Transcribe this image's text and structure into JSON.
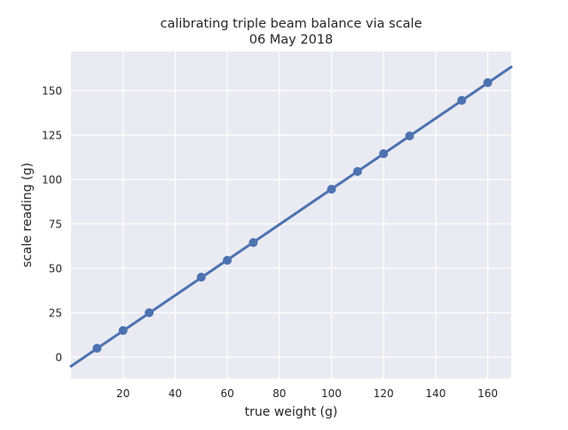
{
  "chart_data": {
    "type": "scatter",
    "title": "calibrating triple beam balance via scale",
    "subtitle": "06 May 2018",
    "xlabel": "true weight (g)",
    "ylabel": "scale reading (g)",
    "xlim": [
      0,
      169
    ],
    "ylim": [
      -12,
      172
    ],
    "xticks": [
      20,
      40,
      60,
      80,
      100,
      120,
      140,
      160
    ],
    "yticks": [
      0,
      25,
      50,
      75,
      100,
      125,
      150
    ],
    "grid": true,
    "points": {
      "x": [
        10,
        20,
        30,
        50,
        60,
        70,
        100,
        110,
        120,
        130,
        150,
        160
      ],
      "y": [
        5,
        15,
        25,
        45,
        54.5,
        64.5,
        94.5,
        104.5,
        114.5,
        124.5,
        144.5,
        154.5
      ]
    },
    "fit_line": {
      "slope": 0.9965,
      "intercept": -5.1
    },
    "colors": {
      "background": "#eaeaf2",
      "grid": "#ffffff",
      "series": "#4c72b0"
    }
  }
}
